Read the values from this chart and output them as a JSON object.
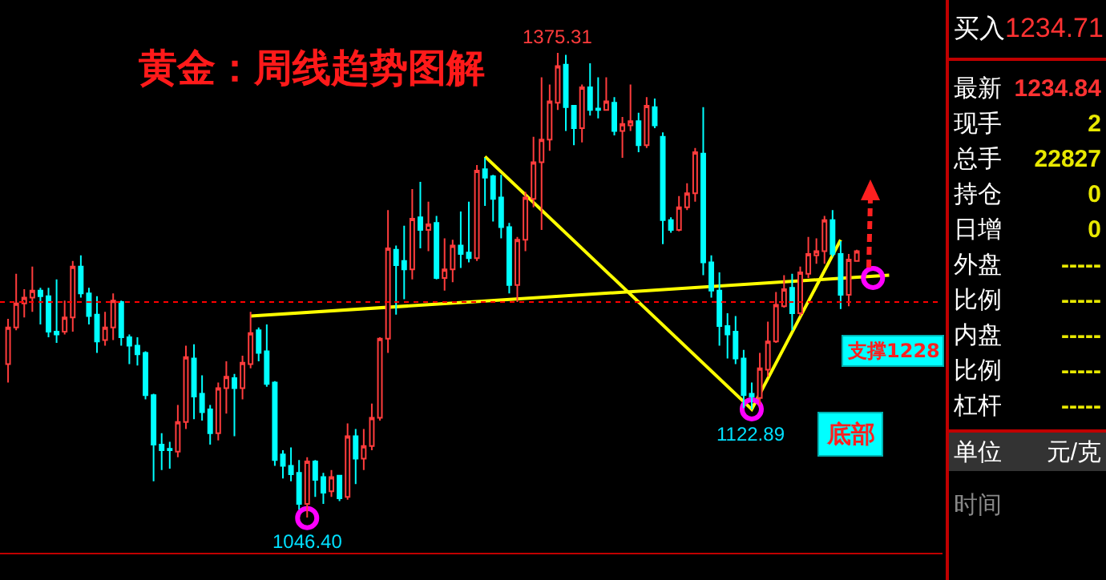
{
  "chart_data": [
    {
      "type": "candlestick",
      "title": "黄金：周线趋势图解",
      "categories": [
        null,
        null,
        null,
        null,
        null,
        null,
        null,
        null,
        null,
        null,
        null,
        null,
        null,
        null,
        null,
        null,
        null,
        null,
        null,
        null,
        null,
        null,
        null,
        null,
        null,
        null,
        null,
        null,
        null,
        null,
        null,
        null,
        null,
        null,
        null,
        null,
        null,
        null,
        null,
        null,
        null,
        null,
        null,
        null,
        null,
        null,
        null,
        null,
        null,
        null,
        null,
        null,
        null,
        null,
        null,
        null,
        null,
        null,
        null,
        null,
        null,
        null,
        null,
        null,
        null,
        null,
        null,
        null,
        null,
        null,
        null,
        null,
        null,
        null,
        null,
        null,
        null,
        null,
        null,
        null,
        null,
        null,
        null,
        null,
        null,
        null,
        null,
        null,
        null,
        null,
        null,
        null,
        null,
        null,
        null,
        null,
        null,
        null,
        null,
        null,
        null,
        null,
        null,
        null,
        null,
        null,
        null,
        null,
        null,
        null
      ],
      "ohlc": [
        [
          1155,
          1187,
          1142,
          1181
        ],
        [
          1181,
          1219,
          1179,
          1198
        ],
        [
          1198,
          1208,
          1188,
          1202
        ],
        [
          1202,
          1224,
          1192,
          1207
        ],
        [
          1207,
          1209,
          1183,
          1203
        ],
        [
          1203,
          1209,
          1174,
          1178
        ],
        [
          1178,
          1215,
          1170,
          1176
        ],
        [
          1178,
          1200,
          1176,
          1188
        ],
        [
          1188,
          1228,
          1178,
          1224
        ],
        [
          1224,
          1232,
          1202,
          1205
        ],
        [
          1205,
          1209,
          1183,
          1189
        ],
        [
          1190,
          1203,
          1163,
          1171
        ],
        [
          1172,
          1192,
          1168,
          1181
        ],
        [
          1181,
          1205,
          1172,
          1200
        ],
        [
          1199,
          1200,
          1168,
          1174
        ],
        [
          1174,
          1176,
          1155,
          1168
        ],
        [
          1168,
          1174,
          1154,
          1162
        ],
        [
          1163,
          1164,
          1130,
          1133
        ],
        [
          1133,
          1134,
          1072,
          1098
        ],
        [
          1098,
          1106,
          1080,
          1094
        ],
        [
          1095,
          1100,
          1081,
          1094
        ],
        [
          1093,
          1126,
          1089,
          1114
        ],
        [
          1114,
          1168,
          1109,
          1160
        ],
        [
          1159,
          1169,
          1116,
          1132
        ],
        [
          1134,
          1147,
          1115,
          1121
        ],
        [
          1123,
          1126,
          1098,
          1106
        ],
        [
          1106,
          1142,
          1101,
          1138
        ],
        [
          1138,
          1157,
          1120,
          1146
        ],
        [
          1145,
          1148,
          1104,
          1138
        ],
        [
          1138,
          1161,
          1130,
          1156
        ],
        [
          1155,
          1192,
          1152,
          1177
        ],
        [
          1179,
          1181,
          1157,
          1163
        ],
        [
          1164,
          1183,
          1139,
          1141
        ],
        [
          1142,
          1143,
          1083,
          1087
        ],
        [
          1091,
          1094,
          1074,
          1083
        ],
        [
          1083,
          1096,
          1072,
          1077
        ],
        [
          1078,
          1087,
          1052,
          1056
        ],
        [
          1056,
          1089,
          1046.4,
          1086
        ],
        [
          1086,
          1087,
          1061,
          1073
        ],
        [
          1075,
          1078,
          1056,
          1064
        ],
        [
          1065,
          1080,
          1061,
          1075
        ],
        [
          1076,
          1076,
          1058,
          1060
        ],
        [
          1061,
          1113,
          1059,
          1104
        ],
        [
          1104,
          1109,
          1070,
          1088
        ],
        [
          1088,
          1109,
          1080,
          1097
        ],
        [
          1097,
          1127,
          1094,
          1117
        ],
        [
          1117,
          1174,
          1115,
          1173
        ],
        [
          1173,
          1264,
          1163,
          1237
        ],
        [
          1236,
          1239,
          1190,
          1225
        ],
        [
          1228,
          1253,
          1201,
          1222
        ],
        [
          1222,
          1279,
          1215,
          1258
        ],
        [
          1259,
          1284,
          1237,
          1250
        ],
        [
          1250,
          1270,
          1235,
          1254
        ],
        [
          1255,
          1260,
          1215,
          1216
        ],
        [
          1216,
          1244,
          1207,
          1222
        ],
        [
          1222,
          1243,
          1213,
          1239
        ],
        [
          1239,
          1263,
          1223,
          1233
        ],
        [
          1234,
          1270,
          1227,
          1230
        ],
        [
          1230,
          1296,
          1228,
          1292
        ],
        [
          1293,
          1301,
          1267,
          1287
        ],
        [
          1288,
          1289,
          1256,
          1272
        ],
        [
          1273,
          1289,
          1244,
          1252
        ],
        [
          1252,
          1255,
          1205,
          1211
        ],
        [
          1211,
          1245,
          1199,
          1243
        ],
        [
          1243,
          1277,
          1235,
          1273
        ],
        [
          1272,
          1316,
          1266,
          1298
        ],
        [
          1298,
          1358,
          1250,
          1314
        ],
        [
          1314,
          1353,
          1306,
          1341
        ],
        [
          1340,
          1375.31,
          1335,
          1366
        ],
        [
          1367,
          1374,
          1320,
          1337
        ],
        [
          1338,
          1338,
          1310,
          1322
        ],
        [
          1322,
          1353,
          1312,
          1351
        ],
        [
          1351,
          1368,
          1331,
          1335
        ],
        [
          1336,
          1358,
          1329,
          1335
        ],
        [
          1335,
          1358,
          1335,
          1341
        ],
        [
          1340,
          1344,
          1317,
          1320
        ],
        [
          1320,
          1330,
          1301,
          1325
        ],
        [
          1324,
          1353,
          1320,
          1327
        ],
        [
          1327,
          1333,
          1305,
          1310
        ],
        [
          1310,
          1344,
          1308,
          1338
        ],
        [
          1337,
          1343,
          1322,
          1324
        ],
        [
          1316,
          1319,
          1240,
          1257
        ],
        [
          1257,
          1259,
          1248,
          1250
        ],
        [
          1250,
          1274,
          1249,
          1266
        ],
        [
          1266,
          1283,
          1264,
          1276
        ],
        [
          1276,
          1308,
          1270,
          1305
        ],
        [
          1304,
          1337,
          1218,
          1227
        ],
        [
          1227,
          1232,
          1202,
          1207
        ],
        [
          1207,
          1220,
          1168,
          1182
        ],
        [
          1182,
          1191,
          1159,
          1176
        ],
        [
          1178,
          1189,
          1155,
          1159
        ],
        [
          1159,
          1165,
          1124,
          1133
        ],
        [
          1134,
          1142,
          1122.89,
          1132
        ],
        [
          1131,
          1163,
          1126,
          1152
        ],
        [
          1151,
          1185,
          1146,
          1171
        ],
        [
          1171,
          1206,
          1170,
          1197
        ],
        [
          1196,
          1218,
          1195,
          1208
        ],
        [
          1209,
          1219,
          1179,
          1191
        ],
        [
          1191,
          1224,
          1189,
          1220
        ],
        [
          1219,
          1245,
          1216,
          1233
        ],
        [
          1232,
          1244,
          1226,
          1235
        ],
        [
          1235,
          1260,
          1226,
          1257
        ],
        [
          1257,
          1264,
          1231,
          1233
        ],
        [
          1233,
          1242,
          1194,
          1204
        ],
        [
          1204,
          1233,
          1196,
          1229
        ],
        [
          1228,
          1236,
          1228,
          1235
        ],
        null,
        null,
        null,
        null
      ],
      "series": [
        {
          "type": "line",
          "color": "#ffff00",
          "values": [
            null,
            null,
            null,
            null,
            null,
            null,
            null,
            null,
            null,
            null,
            null,
            null,
            null,
            null,
            null,
            null,
            null,
            null,
            null,
            null,
            null,
            null,
            null,
            null,
            null,
            null,
            null,
            null,
            null,
            null,
            1189,
            null,
            null,
            null,
            null,
            null,
            null,
            null,
            null,
            null,
            null,
            null,
            null,
            null,
            null,
            null,
            null,
            null,
            null,
            null,
            null,
            null,
            null,
            null,
            null,
            null,
            null,
            null,
            null,
            null,
            null,
            null,
            null,
            null,
            null,
            null,
            null,
            null,
            null,
            null,
            null,
            null,
            null,
            null,
            null,
            null,
            null,
            null,
            null,
            null,
            null,
            null,
            null,
            null,
            null,
            null,
            null,
            null,
            null,
            null,
            null,
            null,
            null,
            null,
            null,
            null,
            null,
            null,
            null,
            null,
            null,
            null,
            null,
            null,
            null,
            null,
            null,
            null,
            null,
            1218
          ]
        },
        {
          "type": "line",
          "color": "#ffff00",
          "values": [
            null,
            null,
            null,
            null,
            null,
            null,
            null,
            null,
            null,
            null,
            null,
            null,
            null,
            null,
            null,
            null,
            null,
            null,
            null,
            null,
            null,
            null,
            null,
            null,
            null,
            null,
            null,
            null,
            null,
            null,
            null,
            null,
            null,
            null,
            null,
            null,
            null,
            null,
            null,
            null,
            null,
            null,
            null,
            null,
            null,
            null,
            null,
            null,
            null,
            null,
            null,
            null,
            null,
            null,
            null,
            null,
            null,
            null,
            null,
            1302,
            null,
            null,
            null,
            null,
            null,
            null,
            null,
            null,
            null,
            null,
            null,
            null,
            null,
            null,
            null,
            null,
            null,
            null,
            null,
            null,
            null,
            null,
            null,
            null,
            null,
            null,
            null,
            null,
            null,
            null,
            null,
            null,
            1123,
            null,
            null,
            null,
            null,
            null,
            null,
            null,
            null,
            null,
            null,
            1243,
            null,
            null,
            null,
            null,
            null,
            null
          ]
        },
        {
          "type": "scatter",
          "color": "#ff00ff",
          "marker": "circle",
          "values": [
            null,
            null,
            null,
            null,
            null,
            null,
            null,
            null,
            null,
            null,
            null,
            null,
            null,
            null,
            null,
            null,
            null,
            null,
            null,
            null,
            null,
            null,
            null,
            null,
            null,
            null,
            null,
            null,
            null,
            null,
            null,
            null,
            null,
            null,
            null,
            null,
            null,
            1046,
            null,
            null,
            null,
            null,
            null,
            null,
            null,
            null,
            null,
            null,
            null,
            null,
            null,
            null,
            null,
            null,
            null,
            null,
            null,
            null,
            null,
            null,
            null,
            null,
            null,
            null,
            null,
            null,
            null,
            null,
            null,
            null,
            null,
            null,
            null,
            null,
            null,
            null,
            null,
            null,
            null,
            null,
            null,
            null,
            null,
            null,
            null,
            null,
            null,
            null,
            null,
            null,
            null,
            null,
            1123,
            null,
            null,
            null,
            null,
            null,
            null,
            null,
            null,
            null,
            null,
            null,
            null,
            null,
            null,
            1216,
            null,
            null
          ]
        }
      ],
      "ref_lines": [
        {
          "axis": "y",
          "value": 1199,
          "color": "#ff0000",
          "line_style": "dotted"
        }
      ],
      "annotations": [
        {
          "text": "1375.31",
          "y": 1375.31
        },
        {
          "text": "1046.40",
          "y": 1046.4
        },
        {
          "text": "1122.89",
          "y": 1122.89
        },
        "支撑1228",
        "底部"
      ],
      "tick_labels": false
    },
    {
      "type": "other",
      "annotations": [
        "买入",
        "1234.71",
        "最新",
        "1234.84",
        "现手",
        "2",
        "总手",
        "22827",
        "持仓",
        "0",
        "日增",
        "0",
        "外盘",
        "-----",
        "比例",
        "-----",
        "内盘",
        "-----",
        "比例",
        "-----",
        "杠杆",
        "-----",
        "单位",
        "元/克",
        "时间"
      ]
    }
  ]
}
